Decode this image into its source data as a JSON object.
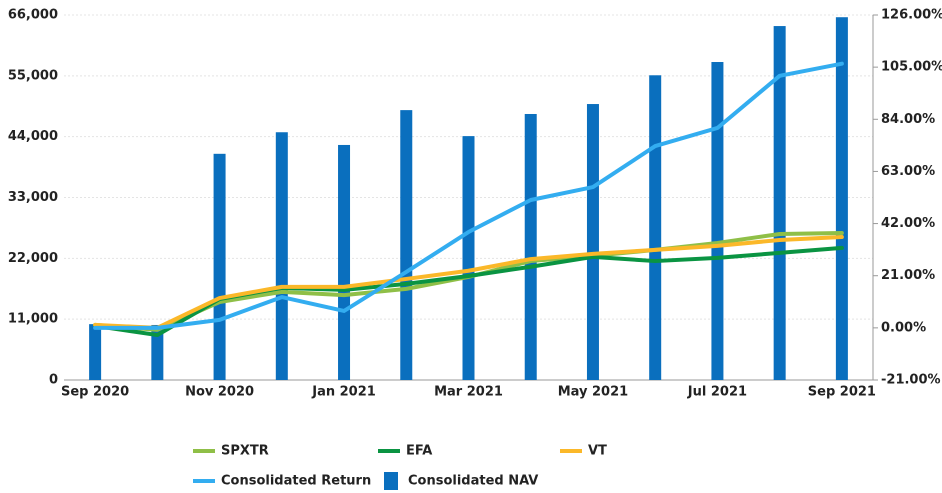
{
  "chart_data": {
    "type": "combo",
    "categories": [
      "Sep 2020",
      null,
      "Nov 2020",
      null,
      "Jan 2021",
      null,
      "Mar 2021",
      null,
      "May 2021",
      null,
      "Jul 2021",
      null,
      "Sep 2021"
    ],
    "series": [
      {
        "name": "Consolidated NAV",
        "type": "bar",
        "axis": "y",
        "color": "#0a6fbe",
        "values": [
          10100,
          9950,
          40900,
          44800,
          42500,
          48800,
          44100,
          48100,
          49900,
          55100,
          57500,
          64000,
          65600
        ]
      },
      {
        "name": "SPXTR",
        "type": "line",
        "axis": "y2",
        "color": "#8fbf47",
        "values": [
          1.2,
          -0.8,
          10.4,
          14.5,
          13.2,
          15.7,
          20.5,
          26.9,
          29.0,
          31.4,
          34.2,
          37.8,
          38.2
        ]
      },
      {
        "name": "EFA",
        "type": "line",
        "axis": "y2",
        "color": "#0a9442",
        "values": [
          0.8,
          -2.9,
          11.6,
          16.1,
          15.3,
          17.7,
          20.9,
          24.6,
          28.6,
          26.9,
          28.2,
          30.2,
          32.2
        ]
      },
      {
        "name": "VT",
        "type": "line",
        "axis": "y2",
        "color": "#fbb829",
        "values": [
          1.2,
          0,
          12.0,
          16.5,
          16.5,
          19.7,
          23.0,
          27.7,
          29.8,
          31.4,
          33.0,
          35.4,
          36.6
        ]
      },
      {
        "name": "Consolidated Return",
        "type": "line",
        "axis": "y2",
        "color": "#33adf0",
        "values": [
          0,
          0,
          3.2,
          12.4,
          6.8,
          22.5,
          38.6,
          51.5,
          56.7,
          73.2,
          80.5,
          101.5,
          106.4
        ]
      }
    ],
    "legend_order": [
      "SPXTR",
      "EFA",
      "VT",
      "Consolidated Return",
      "Consolidated NAV"
    ],
    "ylim": [
      0,
      66000
    ],
    "yticks": [
      0,
      {
        "value": 11000,
        "label": "11,000"
      },
      {
        "value": 22000,
        "label": "22,000"
      },
      {
        "value": 33000,
        "label": "33,000"
      },
      {
        "value": 44000,
        "label": "44,000"
      },
      {
        "value": 55000,
        "label": "55,000"
      },
      {
        "value": 66000,
        "label": "66,000"
      }
    ],
    "y2lim": [
      -21,
      126
    ],
    "y2ticks": [
      {
        "value": -21,
        "label": "-21.00%"
      },
      {
        "value": 0,
        "label": "0.00%"
      },
      {
        "value": 21,
        "label": "21.00%"
      },
      {
        "value": 42,
        "label": "42.00%"
      },
      {
        "value": 63,
        "label": "63.00%"
      },
      {
        "value": 84,
        "label": "84.00%"
      },
      {
        "value": 105,
        "label": "105.00%"
      },
      {
        "value": 126,
        "label": "126.00%"
      }
    ],
    "grid": true
  }
}
